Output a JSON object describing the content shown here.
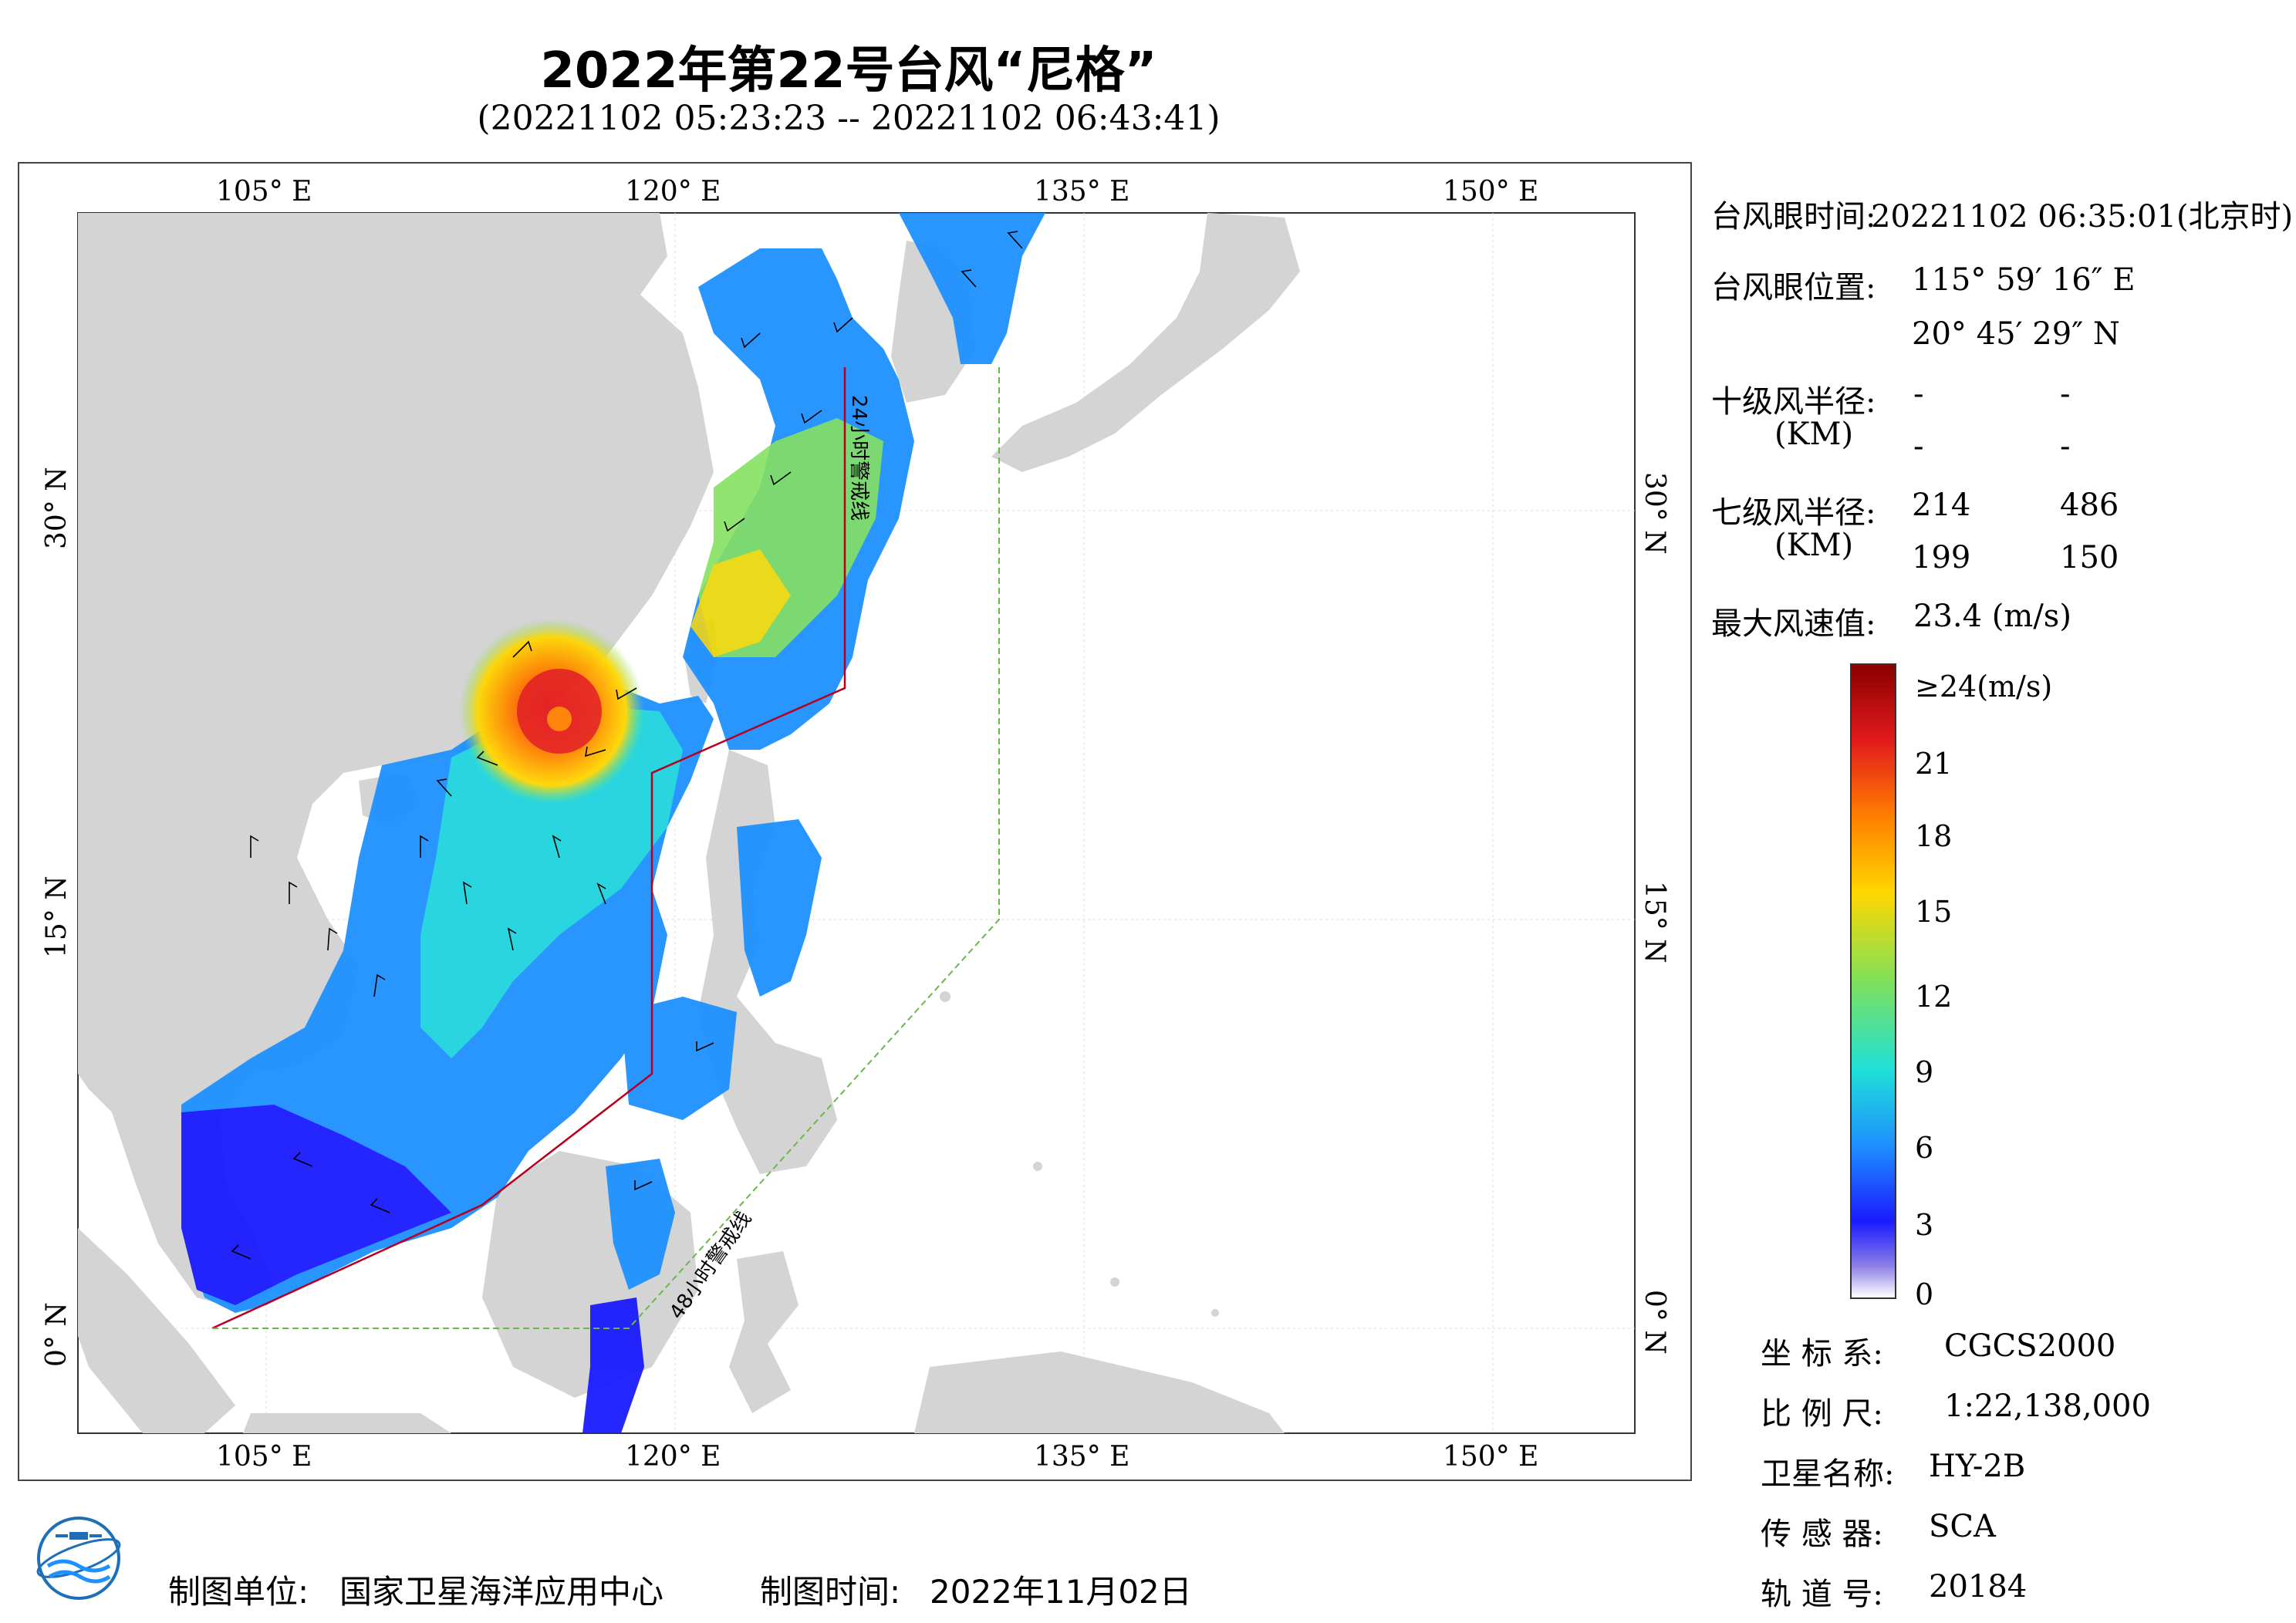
{
  "title": "2022年第22号台风“尼格”",
  "subtitle": "(20221102 05:23:23 -- 20221102 06:43:41)",
  "map": {
    "lon_labels": [
      "105° E",
      "120° E",
      "135° E",
      "150° E"
    ],
    "lat_labels": [
      "30° N",
      "15° N",
      "0° N"
    ],
    "warning_24h": "24小时警戒线",
    "warning_48h": "48小时警戒线",
    "colors": {
      "land": "#d4d4d4",
      "sea": "#ffffff",
      "line24": "#b8001e",
      "line48": "#6ab84a"
    }
  },
  "info": {
    "eye_time_label": "台风眼时间:",
    "eye_time_value": "20221102 06:35:01(北京时)",
    "eye_pos_label": "台风眼位置:",
    "eye_lon": "115° 59′ 16″ E",
    "eye_lat": "20° 45′ 29″ N",
    "r10_label": "十级风半径:",
    "r10_unit": "(KM)",
    "r10_values": [
      "-",
      "-",
      "-",
      "-"
    ],
    "r7_label": "七级风半径:",
    "r7_unit": "(KM)",
    "r7_values": [
      "214",
      "486",
      "199",
      "150"
    ],
    "max_wind_label": "最大风速值:",
    "max_wind_value": "23.4 (m/s)"
  },
  "colorbar": {
    "labels": [
      "≥24(m/s)",
      "21",
      "18",
      "15",
      "12",
      "9",
      "6",
      "3",
      "0"
    ],
    "colors": [
      "#8b0000",
      "#e31a1c",
      "#ff7f00",
      "#ffd700",
      "#7fe05a",
      "#1fe0d8",
      "#1e90ff",
      "#1a1aff",
      "#8c7ee6",
      "#ffffff"
    ]
  },
  "meta": {
    "crs_label": "坐 标 系:",
    "crs_value": "CGCS2000",
    "scale_label": "比 例 尺:",
    "scale_value": "1:22,138,000",
    "sat_label": "卫星名称:",
    "sat_value": "HY-2B",
    "sensor_label": "传 感 器:",
    "sensor_value": "SCA",
    "orbit_label": "轨 道 号:",
    "orbit_value": "20184"
  },
  "footer": {
    "org_label": "制图单位:",
    "org_value": "国家卫星海洋应用中心",
    "date_label": "制图时间:",
    "date_value": "2022年11月02日"
  }
}
